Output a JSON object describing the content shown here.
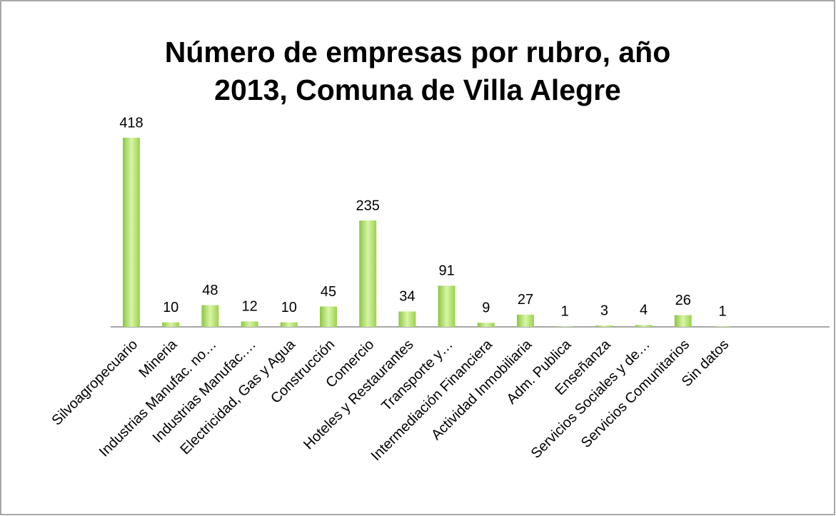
{
  "chart_data": {
    "type": "bar",
    "title": [
      "Número de empresas por rubro, año",
      "2013, Comuna de Villa Alegre"
    ],
    "categories": [
      "Silvoagropecuario",
      "Mineria",
      "Industrias Manufac. no…",
      "Industrias Manufac.…",
      "Electricidad, Gas y Agua",
      "Construcción",
      "Comercio",
      "Hoteles y Restaurantes",
      "Transporte y…",
      "Intermediación Financiera",
      "Actividad Inmobiliaria",
      "Adm. Publica",
      "Enseñanza",
      "Servicios Sociales y de…",
      "Servicios Comunitarios",
      "Sin datos"
    ],
    "values": [
      418,
      10,
      48,
      12,
      10,
      45,
      235,
      34,
      91,
      9,
      27,
      1,
      3,
      4,
      26,
      1
    ],
    "color": "#9bd24c"
  }
}
